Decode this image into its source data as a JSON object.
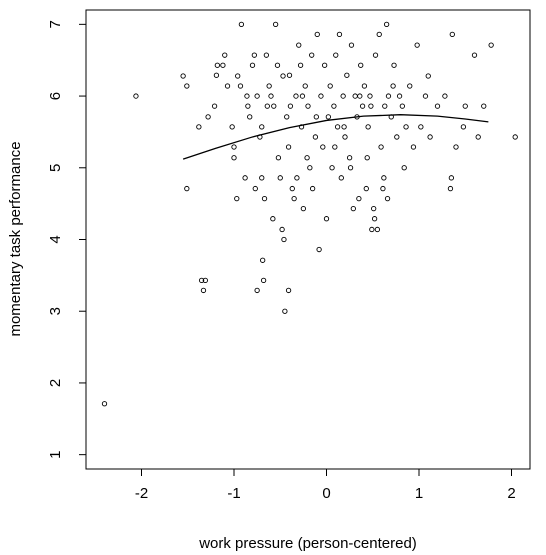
{
  "chart_data": {
    "type": "scatter",
    "title": "",
    "xlabel": "work pressure (person-centered)",
    "ylabel": "momentary task performance",
    "xlim": [
      -2.6,
      2.2
    ],
    "ylim": [
      0.8,
      7.2
    ],
    "x_ticks": [
      -2,
      -1,
      0,
      1,
      2
    ],
    "y_ticks": [
      1,
      2,
      3,
      4,
      5,
      6,
      7
    ],
    "x_tick_labels": [
      "-2",
      "-1",
      "0",
      "1",
      "2"
    ],
    "y_tick_labels": [
      "1",
      "2",
      "3",
      "4",
      "5",
      "6",
      "7"
    ],
    "grid": false,
    "legend": "none",
    "colors": {
      "points": "#000000",
      "fit_line": "#000000",
      "frame": "#000000",
      "background": "#ffffff"
    },
    "series": [
      {
        "kind": "points",
        "marker": "open-circle",
        "points": [
          [
            -2.4,
            1.71
          ],
          [
            -2.06,
            6.0
          ],
          [
            -1.55,
            6.28
          ],
          [
            -1.51,
            6.14
          ],
          [
            -1.51,
            4.71
          ],
          [
            -1.35,
            3.43
          ],
          [
            -1.31,
            3.43
          ],
          [
            -1.33,
            3.29
          ],
          [
            -1.28,
            5.71
          ],
          [
            -1.21,
            5.86
          ],
          [
            -1.19,
            6.29
          ],
          [
            -1.18,
            6.43
          ],
          [
            -1.12,
            6.43
          ],
          [
            -1.1,
            6.57
          ],
          [
            -1.07,
            6.14
          ],
          [
            -1.02,
            5.57
          ],
          [
            -1.0,
            5.29
          ],
          [
            -1.0,
            5.14
          ],
          [
            -0.96,
            6.28
          ],
          [
            -0.93,
            6.14
          ],
          [
            -0.92,
            7.0
          ],
          [
            -0.88,
            4.86
          ],
          [
            -0.85,
            5.86
          ],
          [
            -0.83,
            5.71
          ],
          [
            -0.8,
            6.43
          ],
          [
            -0.78,
            6.57
          ],
          [
            -0.75,
            6.0
          ],
          [
            -0.72,
            5.43
          ],
          [
            -0.7,
            5.57
          ],
          [
            -0.7,
            4.86
          ],
          [
            -0.69,
            3.71
          ],
          [
            -0.68,
            3.43
          ],
          [
            -0.67,
            4.57
          ],
          [
            -0.65,
            6.57
          ],
          [
            -0.62,
            6.14
          ],
          [
            -0.6,
            6.0
          ],
          [
            -0.57,
            5.86
          ],
          [
            -0.55,
            7.0
          ],
          [
            -0.53,
            6.43
          ],
          [
            -0.52,
            5.14
          ],
          [
            -0.5,
            4.86
          ],
          [
            -0.48,
            4.14
          ],
          [
            -0.46,
            4.0
          ],
          [
            -0.45,
            3.0
          ],
          [
            -0.43,
            5.71
          ],
          [
            -0.41,
            5.29
          ],
          [
            -0.4,
            6.29
          ],
          [
            -0.39,
            5.86
          ],
          [
            -0.37,
            4.71
          ],
          [
            -0.35,
            4.57
          ],
          [
            -0.33,
            6.0
          ],
          [
            -0.3,
            6.71
          ],
          [
            -0.28,
            6.43
          ],
          [
            -0.27,
            5.57
          ],
          [
            -0.25,
            4.43
          ],
          [
            -0.23,
            6.14
          ],
          [
            -0.2,
            5.86
          ],
          [
            -0.18,
            5.0
          ],
          [
            -0.16,
            6.57
          ],
          [
            -0.15,
            4.71
          ],
          [
            -0.12,
            5.43
          ],
          [
            -0.1,
            6.86
          ],
          [
            -0.08,
            3.86
          ],
          [
            -0.06,
            6.0
          ],
          [
            -0.04,
            5.29
          ],
          [
            -0.02,
            6.43
          ],
          [
            0.0,
            4.29
          ],
          [
            0.02,
            5.71
          ],
          [
            0.04,
            6.14
          ],
          [
            0.06,
            5.0
          ],
          [
            0.08,
            5.86
          ],
          [
            0.1,
            6.57
          ],
          [
            0.12,
            5.57
          ],
          [
            0.14,
            6.86
          ],
          [
            0.16,
            4.86
          ],
          [
            0.18,
            6.0
          ],
          [
            0.2,
            5.43
          ],
          [
            0.22,
            6.29
          ],
          [
            0.25,
            5.14
          ],
          [
            0.27,
            6.71
          ],
          [
            0.29,
            4.43
          ],
          [
            0.31,
            6.0
          ],
          [
            0.33,
            5.71
          ],
          [
            0.35,
            4.57
          ],
          [
            0.37,
            6.43
          ],
          [
            0.39,
            5.86
          ],
          [
            0.41,
            6.14
          ],
          [
            0.43,
            4.71
          ],
          [
            0.45,
            5.57
          ],
          [
            0.47,
            6.0
          ],
          [
            0.49,
            4.14
          ],
          [
            0.51,
            4.43
          ],
          [
            0.53,
            6.57
          ],
          [
            0.55,
            4.14
          ],
          [
            0.57,
            6.86
          ],
          [
            0.59,
            5.29
          ],
          [
            0.61,
            4.71
          ],
          [
            0.63,
            5.86
          ],
          [
            0.65,
            7.0
          ],
          [
            0.67,
            6.0
          ],
          [
            0.7,
            5.71
          ],
          [
            0.73,
            6.43
          ],
          [
            0.76,
            5.43
          ],
          [
            0.79,
            6.0
          ],
          [
            0.82,
            5.86
          ],
          [
            0.86,
            5.57
          ],
          [
            0.9,
            6.14
          ],
          [
            0.94,
            5.29
          ],
          [
            0.98,
            6.71
          ],
          [
            1.02,
            5.57
          ],
          [
            1.07,
            6.0
          ],
          [
            1.12,
            5.43
          ],
          [
            1.2,
            5.86
          ],
          [
            1.28,
            6.0
          ],
          [
            1.34,
            4.71
          ],
          [
            1.35,
            4.86
          ],
          [
            1.36,
            6.86
          ],
          [
            1.4,
            5.29
          ],
          [
            1.48,
            5.57
          ],
          [
            1.5,
            5.86
          ],
          [
            1.6,
            6.57
          ],
          [
            1.64,
            5.43
          ],
          [
            1.7,
            5.86
          ],
          [
            1.78,
            6.71
          ],
          [
            2.04,
            5.43
          ],
          [
            -0.97,
            4.57
          ],
          [
            -0.77,
            4.71
          ],
          [
            -0.58,
            4.29
          ],
          [
            -0.32,
            4.86
          ],
          [
            -0.21,
            5.14
          ],
          [
            0.09,
            5.29
          ],
          [
            0.26,
            5.0
          ],
          [
            0.44,
            5.14
          ],
          [
            0.62,
            4.86
          ],
          [
            0.84,
            5.0
          ],
          [
            -0.86,
            6.0
          ],
          [
            -0.47,
            6.28
          ],
          [
            -0.11,
            5.71
          ],
          [
            0.19,
            5.57
          ],
          [
            0.48,
            5.86
          ],
          [
            -0.64,
            5.86
          ],
          [
            -0.26,
            6.0
          ],
          [
            0.36,
            6.0
          ],
          [
            0.72,
            6.14
          ],
          [
            1.1,
            6.28
          ],
          [
            -1.38,
            5.57
          ],
          [
            -0.75,
            3.29
          ],
          [
            -0.41,
            3.29
          ],
          [
            0.66,
            4.57
          ],
          [
            0.52,
            4.29
          ]
        ]
      },
      {
        "kind": "fit-line",
        "points": [
          [
            -1.55,
            5.12
          ],
          [
            -1.2,
            5.27
          ],
          [
            -0.8,
            5.43
          ],
          [
            -0.4,
            5.56
          ],
          [
            0.0,
            5.66
          ],
          [
            0.4,
            5.72
          ],
          [
            0.8,
            5.74
          ],
          [
            1.2,
            5.72
          ],
          [
            1.5,
            5.68
          ],
          [
            1.75,
            5.64
          ]
        ]
      }
    ]
  }
}
